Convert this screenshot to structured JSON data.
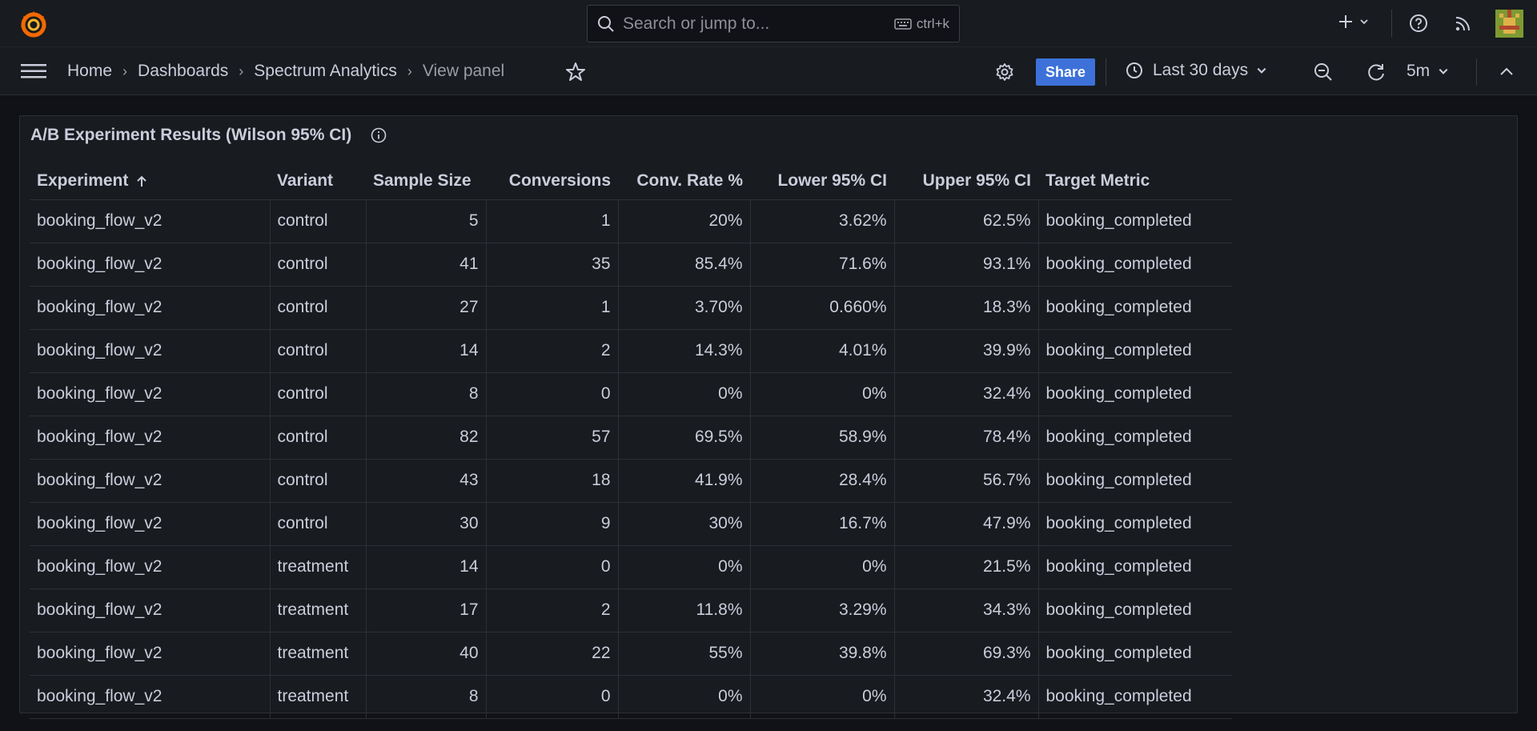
{
  "search": {
    "placeholder": "Search or jump to...",
    "shortcut": "ctrl+k"
  },
  "breadcrumb": [
    "Home",
    "Dashboards",
    "Spectrum Analytics",
    "View panel"
  ],
  "toolbar": {
    "share_label": "Share",
    "time_range": "Last 30 days",
    "refresh_interval": "5m"
  },
  "colors": {
    "accent": "#3d71d9",
    "background": "#111217",
    "panel": "#181b1f"
  },
  "panel": {
    "title": "A/B Experiment Results (Wilson 95% CI)",
    "columns": [
      "Experiment",
      "Variant",
      "Sample Size",
      "Conversions",
      "Conv. Rate %",
      "Lower 95% CI",
      "Upper 95% CI",
      "Target Metric"
    ],
    "rows": [
      [
        "booking_flow_v2",
        "control",
        "5",
        "1",
        "20%",
        "3.62%",
        "62.5%",
        "booking_completed"
      ],
      [
        "booking_flow_v2",
        "control",
        "41",
        "35",
        "85.4%",
        "71.6%",
        "93.1%",
        "booking_completed"
      ],
      [
        "booking_flow_v2",
        "control",
        "27",
        "1",
        "3.70%",
        "0.660%",
        "18.3%",
        "booking_completed"
      ],
      [
        "booking_flow_v2",
        "control",
        "14",
        "2",
        "14.3%",
        "4.01%",
        "39.9%",
        "booking_completed"
      ],
      [
        "booking_flow_v2",
        "control",
        "8",
        "0",
        "0%",
        "0%",
        "32.4%",
        "booking_completed"
      ],
      [
        "booking_flow_v2",
        "control",
        "82",
        "57",
        "69.5%",
        "58.9%",
        "78.4%",
        "booking_completed"
      ],
      [
        "booking_flow_v2",
        "control",
        "43",
        "18",
        "41.9%",
        "28.4%",
        "56.7%",
        "booking_completed"
      ],
      [
        "booking_flow_v2",
        "control",
        "30",
        "9",
        "30%",
        "16.7%",
        "47.9%",
        "booking_completed"
      ],
      [
        "booking_flow_v2",
        "treatment",
        "14",
        "0",
        "0%",
        "0%",
        "21.5%",
        "booking_completed"
      ],
      [
        "booking_flow_v2",
        "treatment",
        "17",
        "2",
        "11.8%",
        "3.29%",
        "34.3%",
        "booking_completed"
      ],
      [
        "booking_flow_v2",
        "treatment",
        "40",
        "22",
        "55%",
        "39.8%",
        "69.3%",
        "booking_completed"
      ],
      [
        "booking_flow_v2",
        "treatment",
        "8",
        "0",
        "0%",
        "0%",
        "32.4%",
        "booking_completed"
      ]
    ]
  }
}
